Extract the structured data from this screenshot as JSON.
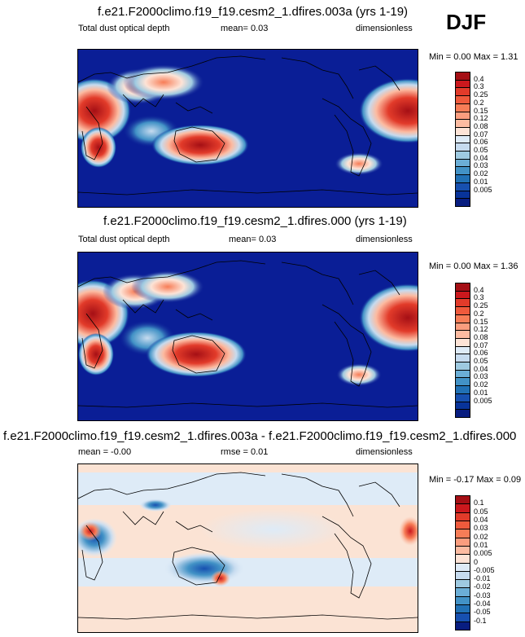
{
  "season": "DJF",
  "panels": [
    {
      "title": "f.e21.F2000climo.f19_f19.cesm2_1.dfires.003a (yrs 1-19)",
      "left_label": "Total dust optical depth",
      "center_label": "mean=  0.03",
      "right_label": "dimensionless",
      "minmax": "Min =  0.00 Max =  1.31",
      "colorbar": {
        "labels": [
          "0.4",
          "0.3",
          "0.25",
          "0.2",
          "0.15",
          "0.12",
          "0.08",
          "0.07",
          "0.06",
          "0.05",
          "0.04",
          "0.03",
          "0.02",
          "0.01",
          "0.005"
        ],
        "colors": [
          "#a50f15",
          "#cb181d",
          "#e23b2a",
          "#ef5a3c",
          "#f77d57",
          "#fb9d7e",
          "#fcbba1",
          "#fde3d6",
          "#deebf7",
          "#c6dbef",
          "#9ecae1",
          "#6baed6",
          "#4292c6",
          "#2171b5",
          "#1750b0",
          "#08339a",
          "#081d80"
        ]
      }
    },
    {
      "title": "f.e21.F2000climo.f19_f19.cesm2_1.dfires.000 (yrs 1-19)",
      "left_label": "Total dust optical depth",
      "center_label": "mean=  0.03",
      "right_label": "dimensionless",
      "minmax": "Min =  0.00 Max =  1.36",
      "colorbar": {
        "labels": [
          "0.4",
          "0.3",
          "0.25",
          "0.2",
          "0.15",
          "0.12",
          "0.08",
          "0.07",
          "0.06",
          "0.05",
          "0.04",
          "0.03",
          "0.02",
          "0.01",
          "0.005"
        ],
        "colors": [
          "#a50f15",
          "#cb181d",
          "#e23b2a",
          "#ef5a3c",
          "#f77d57",
          "#fb9d7e",
          "#fcbba1",
          "#fde3d6",
          "#deebf7",
          "#c6dbef",
          "#9ecae1",
          "#6baed6",
          "#4292c6",
          "#2171b5",
          "#1750b0",
          "#08339a",
          "#081d80"
        ]
      }
    },
    {
      "title": "f.e21.F2000climo.f19_f19.cesm2_1.dfires.003a - f.e21.F2000climo.f19_f19.cesm2_1.dfires.000",
      "left_label": "mean =  -0.00",
      "center_label": "rmse =  0.01",
      "right_label": "dimensionless",
      "minmax": "Min =  -0.17 Max =  0.09",
      "colorbar": {
        "labels": [
          "0.1",
          "0.05",
          "0.04",
          "0.03",
          "0.02",
          "0.01",
          "0.005",
          "0",
          "-0.005",
          "-0.01",
          "-0.02",
          "-0.03",
          "-0.04",
          "-0.05",
          "-0.1"
        ],
        "colors": [
          "#a50f15",
          "#cb181d",
          "#e23b2a",
          "#ef5a3c",
          "#f77d57",
          "#fb9d7e",
          "#fcbba1",
          "#fde3d6",
          "#deebf7",
          "#c6dbef",
          "#9ecae1",
          "#6baed6",
          "#4292c6",
          "#2171b5",
          "#1750b0",
          "#081d80"
        ]
      }
    }
  ],
  "colors": {
    "background_ocean": "#0a1e96",
    "diff_background": "#fbe3d4",
    "coast": "#000000"
  }
}
